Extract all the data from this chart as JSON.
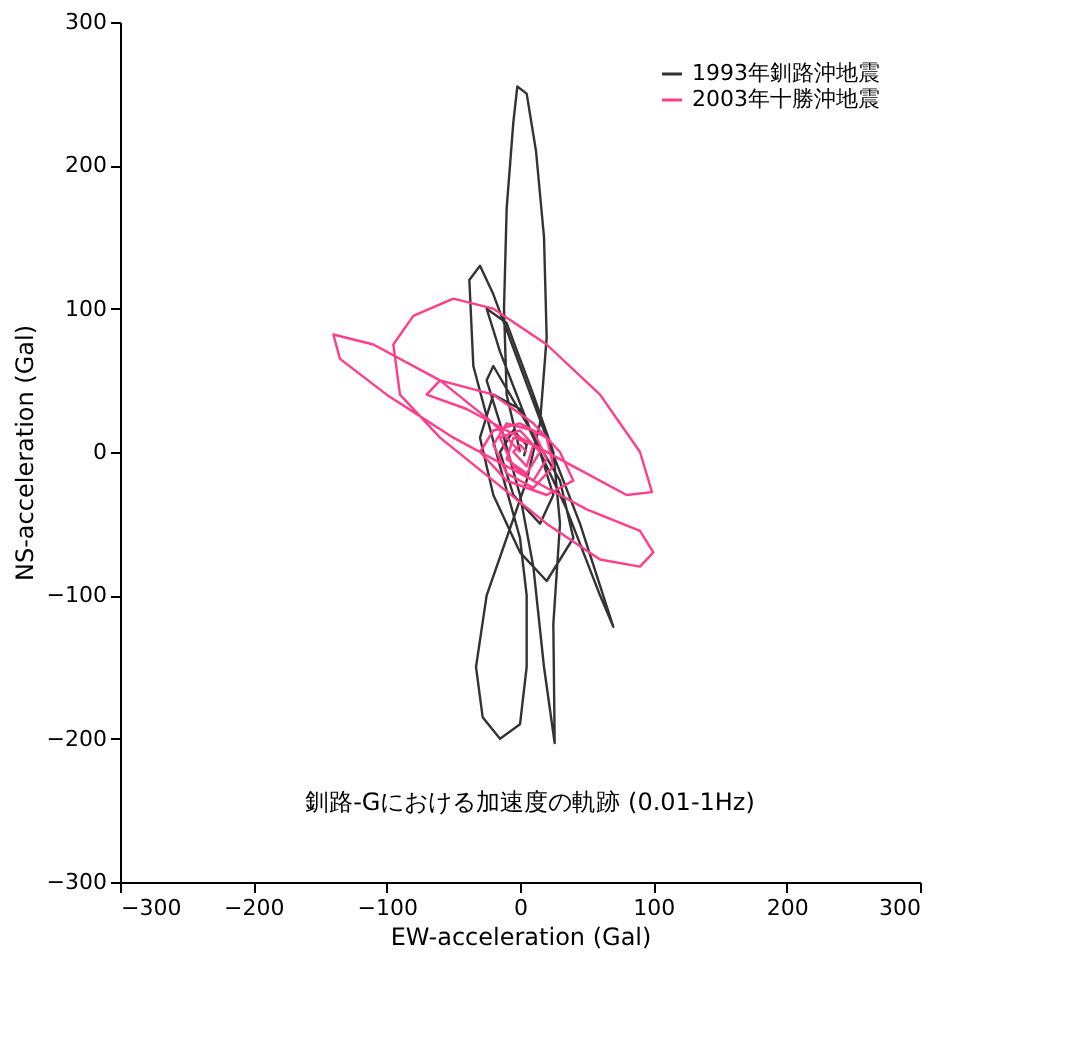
{
  "chart_data": {
    "type": "line",
    "xlabel": "EW-acceleration (Gal)",
    "ylabel": "NS-acceleration (Gal)",
    "xlim": [
      -300,
      300
    ],
    "xticks": [
      -300,
      -200,
      -100,
      0,
      100,
      200,
      300
    ],
    "ylim": [
      -300,
      300
    ],
    "yticks": [
      -300,
      -200,
      -100,
      0,
      100,
      200,
      300
    ],
    "grid": false,
    "legend": "top right",
    "marker": "none",
    "line_style": "solid",
    "annotations": [
      "釧路-Gにおける加速度の軌跡 (0.01-1Hz)"
    ],
    "series": [
      {
        "name": "1993年釧路沖地震",
        "color": "#333333",
        "x": [
          0,
          -10,
          -12,
          -10,
          -5,
          -2,
          5,
          12,
          18,
          20,
          15,
          5,
          -10,
          -25,
          -33,
          -28,
          -15,
          0,
          5,
          5,
          0,
          -15,
          -35,
          -38,
          -30,
          -20,
          0,
          20,
          45,
          70,
          60,
          35,
          10,
          -15,
          -25,
          -10,
          10,
          25,
          30,
          25,
          26,
          18,
          10,
          0,
          -15,
          -25,
          -20,
          5,
          30,
          40,
          20,
          0,
          -20,
          -30,
          -20,
          0,
          15,
          25,
          15,
          -5,
          -15,
          -5,
          5,
          3
        ],
        "values": [
          0,
          40,
          100,
          170,
          230,
          255,
          250,
          210,
          150,
          80,
          20,
          -20,
          -60,
          -100,
          -150,
          -185,
          -200,
          -190,
          -150,
          -100,
          -60,
          -10,
          60,
          120,
          130,
          110,
          60,
          10,
          -50,
          -122,
          -100,
          -40,
          10,
          70,
          100,
          90,
          40,
          0,
          -50,
          -120,
          -203,
          -150,
          -80,
          -30,
          20,
          50,
          60,
          20,
          -20,
          -60,
          -90,
          -70,
          -30,
          10,
          40,
          30,
          0,
          -30,
          -50,
          -30,
          0,
          15,
          5,
          -3
        ]
      },
      {
        "name": "2003年十勝沖地震",
        "color": "#ff3d8b",
        "x": [
          0,
          -20,
          -60,
          -110,
          -140,
          -135,
          -100,
          -50,
          0,
          50,
          90,
          100,
          90,
          60,
          20,
          -20,
          -60,
          -90,
          -95,
          -80,
          -50,
          -20,
          20,
          60,
          90,
          99,
          80,
          40,
          0,
          -40,
          -70,
          -60,
          -20,
          10,
          30,
          40,
          20,
          -10,
          -30,
          -20,
          0,
          20,
          25,
          10,
          -10,
          -20,
          -10,
          10,
          20,
          10,
          -5,
          -15,
          0,
          15,
          5,
          -10,
          -5,
          10,
          5,
          -5,
          0,
          5
        ],
        "values": [
          0,
          20,
          50,
          75,
          82,
          65,
          40,
          10,
          -15,
          -40,
          -55,
          -70,
          -80,
          -75,
          -50,
          -20,
          10,
          40,
          75,
          95,
          107,
          100,
          75,
          40,
          0,
          -28,
          -30,
          -10,
          10,
          30,
          40,
          50,
          40,
          20,
          0,
          -20,
          -30,
          -20,
          0,
          15,
          20,
          10,
          -10,
          -25,
          -15,
          5,
          20,
          15,
          -5,
          -20,
          -10,
          10,
          15,
          0,
          -15,
          -5,
          10,
          5,
          -10,
          0,
          5,
          0
        ]
      }
    ]
  }
}
